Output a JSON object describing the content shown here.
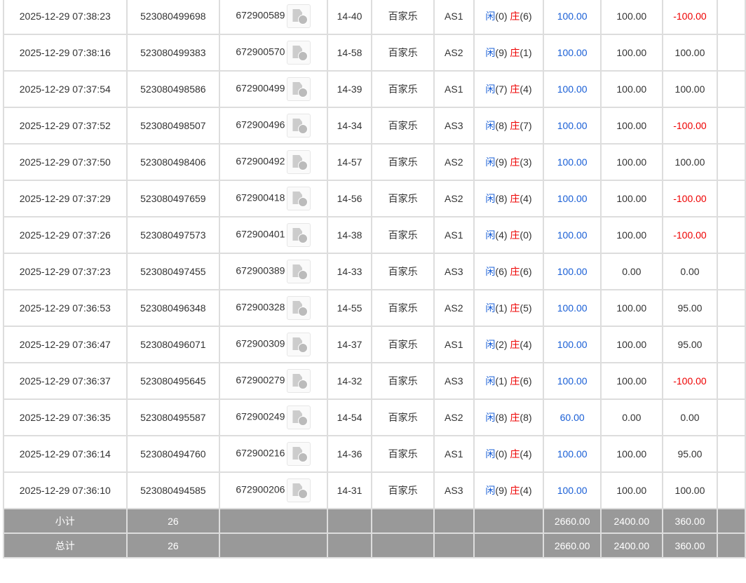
{
  "rows": [
    [
      "2025-12-29 07:38:23",
      "523080499698",
      "672900589",
      "14-40",
      "百家乐",
      "AS1",
      "0",
      "6",
      "100.00",
      "100.00",
      "-100.00"
    ],
    [
      "2025-12-29 07:38:16",
      "523080499383",
      "672900570",
      "14-58",
      "百家乐",
      "AS2",
      "9",
      "1",
      "100.00",
      "100.00",
      "100.00"
    ],
    [
      "2025-12-29 07:37:54",
      "523080498586",
      "672900499",
      "14-39",
      "百家乐",
      "AS1",
      "7",
      "4",
      "100.00",
      "100.00",
      "100.00"
    ],
    [
      "2025-12-29 07:37:52",
      "523080498507",
      "672900496",
      "14-34",
      "百家乐",
      "AS3",
      "8",
      "7",
      "100.00",
      "100.00",
      "-100.00"
    ],
    [
      "2025-12-29 07:37:50",
      "523080498406",
      "672900492",
      "14-57",
      "百家乐",
      "AS2",
      "9",
      "3",
      "100.00",
      "100.00",
      "100.00"
    ],
    [
      "2025-12-29 07:37:29",
      "523080497659",
      "672900418",
      "14-56",
      "百家乐",
      "AS2",
      "8",
      "4",
      "100.00",
      "100.00",
      "-100.00"
    ],
    [
      "2025-12-29 07:37:26",
      "523080497573",
      "672900401",
      "14-38",
      "百家乐",
      "AS1",
      "4",
      "0",
      "100.00",
      "100.00",
      "-100.00"
    ],
    [
      "2025-12-29 07:37:23",
      "523080497455",
      "672900389",
      "14-33",
      "百家乐",
      "AS3",
      "6",
      "6",
      "100.00",
      "0.00",
      "0.00"
    ],
    [
      "2025-12-29 07:36:53",
      "523080496348",
      "672900328",
      "14-55",
      "百家乐",
      "AS2",
      "1",
      "5",
      "100.00",
      "100.00",
      "95.00"
    ],
    [
      "2025-12-29 07:36:47",
      "523080496071",
      "672900309",
      "14-37",
      "百家乐",
      "AS1",
      "2",
      "4",
      "100.00",
      "100.00",
      "95.00"
    ],
    [
      "2025-12-29 07:36:37",
      "523080495645",
      "672900279",
      "14-32",
      "百家乐",
      "AS3",
      "1",
      "6",
      "100.00",
      "100.00",
      "-100.00"
    ],
    [
      "2025-12-29 07:36:35",
      "523080495587",
      "672900249",
      "14-54",
      "百家乐",
      "AS2",
      "8",
      "8",
      "60.00",
      "0.00",
      "0.00"
    ],
    [
      "2025-12-29 07:36:14",
      "523080494760",
      "672900216",
      "14-36",
      "百家乐",
      "AS1",
      "0",
      "4",
      "100.00",
      "100.00",
      "95.00"
    ],
    [
      "2025-12-29 07:36:10",
      "523080494585",
      "672900206",
      "14-31",
      "百家乐",
      "AS3",
      "9",
      "4",
      "100.00",
      "100.00",
      "100.00"
    ]
  ],
  "labels": {
    "player": "闲",
    "banker": "庄"
  },
  "summary": [
    {
      "label": "小计",
      "count": "26",
      "bet": "2660.00",
      "valid": "2400.00",
      "win": "360.00"
    },
    {
      "label": "总计",
      "count": "26",
      "bet": "2660.00",
      "valid": "2400.00",
      "win": "360.00"
    }
  ],
  "icon": "video-replay-icon"
}
